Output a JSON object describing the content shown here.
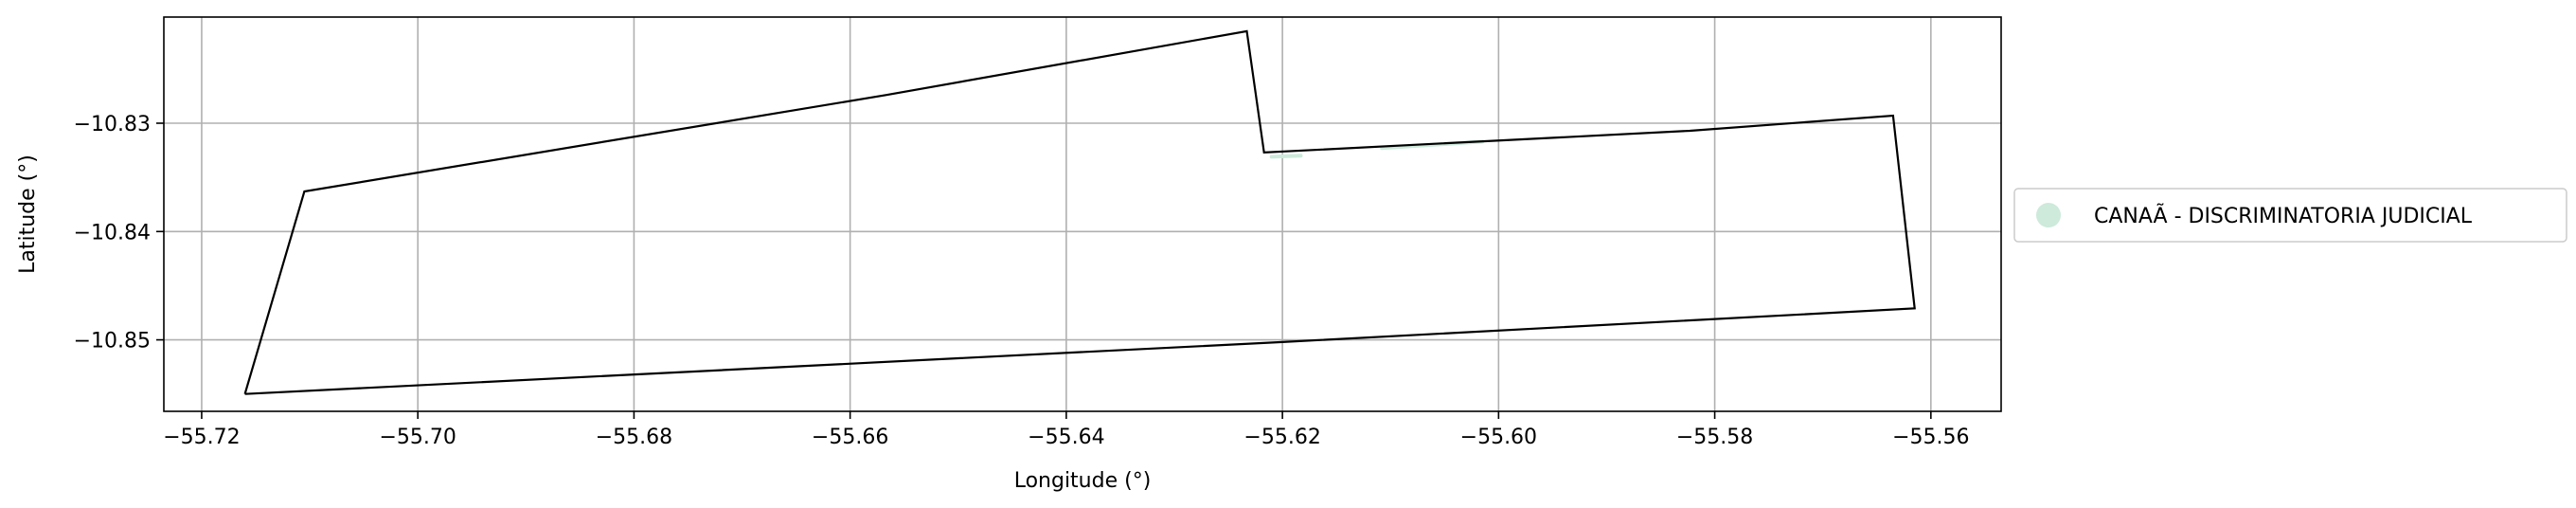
{
  "chart_data": {
    "type": "map",
    "title": "",
    "xlabel": "Longitude (°)",
    "ylabel": "Latitude (°)",
    "xlim": [
      -55.7235,
      -55.5535
    ],
    "ylim": [
      -10.8566,
      -10.8202
    ],
    "x_ticks": [
      {
        "value": -55.72,
        "label": "−55.72"
      },
      {
        "value": -55.7,
        "label": "−55.70"
      },
      {
        "value": -55.68,
        "label": "−55.68"
      },
      {
        "value": -55.66,
        "label": "−55.66"
      },
      {
        "value": -55.64,
        "label": "−55.64"
      },
      {
        "value": -55.62,
        "label": "−55.62"
      },
      {
        "value": -55.6,
        "label": "−55.60"
      },
      {
        "value": -55.58,
        "label": "−55.58"
      },
      {
        "value": -55.56,
        "label": "−55.56"
      }
    ],
    "y_ticks": [
      {
        "value": -10.83,
        "label": "−10.83"
      },
      {
        "value": -10.84,
        "label": "−10.84"
      },
      {
        "value": -10.85,
        "label": "−10.85"
      }
    ],
    "grid": true,
    "legend_placement": "right",
    "boundary": {
      "stroke": "#000000",
      "points": [
        [
          -55.716,
          -10.855
        ],
        [
          -55.7105,
          -10.8363
        ],
        [
          -55.6567,
          -10.8274
        ],
        [
          -55.6233,
          -10.8215
        ],
        [
          -55.6217,
          -10.8327
        ],
        [
          -55.5823,
          -10.8307
        ],
        [
          -55.5635,
          -10.8293
        ],
        [
          -55.5615,
          -10.8471
        ],
        [
          -55.62,
          -10.8502
        ],
        [
          -55.716,
          -10.855
        ]
      ]
    },
    "series": [
      {
        "name": "CANAÃ - DISCRIMINATORIA JUDICIAL",
        "color": "#cdeadb",
        "segments": [
          [
            [
              -55.621,
              -10.8331
            ],
            [
              -55.6183,
              -10.833
            ]
          ],
          [
            [
              -55.6108,
              -10.8323
            ],
            [
              -55.6015,
              -10.8317
            ]
          ]
        ]
      }
    ]
  }
}
